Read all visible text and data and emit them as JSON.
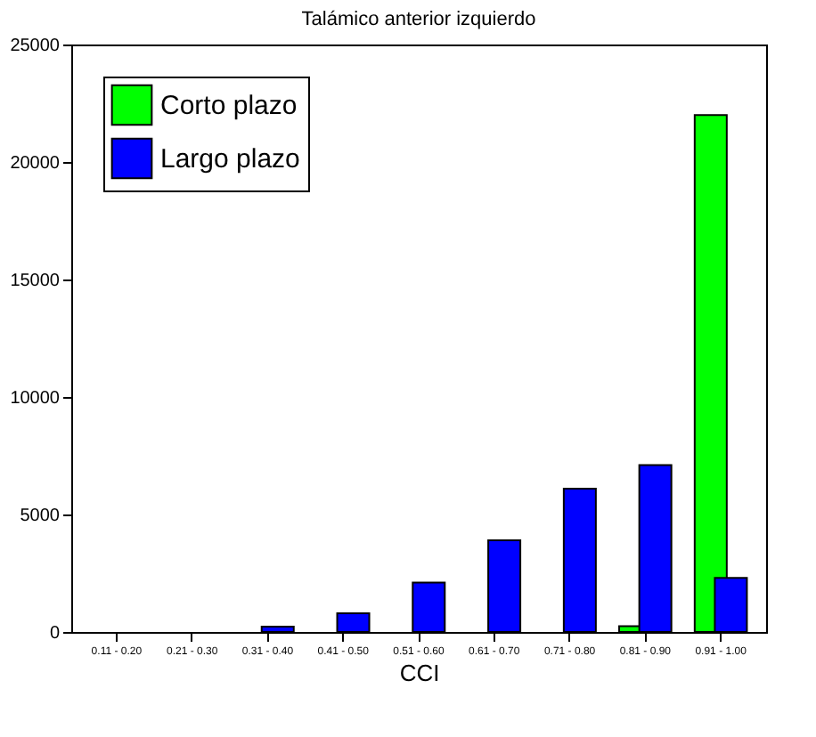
{
  "chart_data": {
    "type": "bar",
    "title": "Talámico anterior izquierdo",
    "xlabel": "CCI",
    "categories": [
      "0.11 - 0.20",
      "0.21 - 0.30",
      "0.31 - 0.40",
      "0.41 - 0.50",
      "0.51 - 0.60",
      "0.61 - 0.70",
      "0.71 - 0.80",
      "0.81 - 0.90",
      "0.91 - 1.00"
    ],
    "series": [
      {
        "name": "Corto plazo",
        "color": "#00ff00",
        "values": [
          0,
          0,
          0,
          0,
          0,
          0,
          0,
          250,
          22000
        ]
      },
      {
        "name": "Largo plazo",
        "color": "#0000ff",
        "values": [
          0,
          0,
          230,
          800,
          2100,
          3900,
          6100,
          7100,
          2300
        ]
      }
    ],
    "ylim": [
      0,
      25000
    ],
    "yticks": [
      0,
      5000,
      10000,
      15000,
      20000,
      25000
    ],
    "grid": false,
    "legend": "top left"
  }
}
